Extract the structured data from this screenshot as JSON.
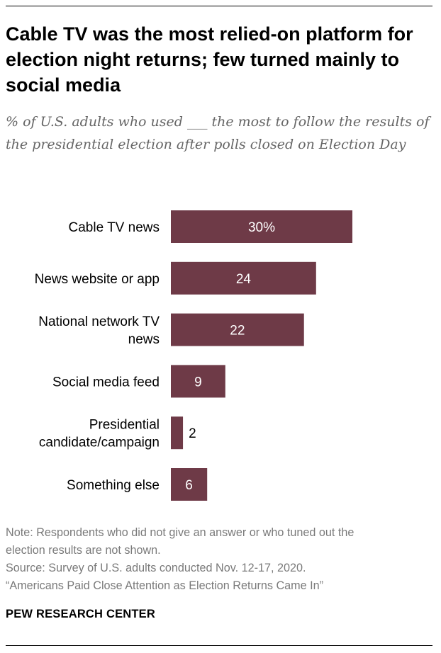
{
  "title": "Cable TV was the most relied-on platform for election night returns; few turned mainly to social media",
  "subtitle": "% of U.S. adults who used ___ the most to follow the results of the presidential election after polls closed on Election Day",
  "note_line1": "Note: Respondents who did not give an answer or who tuned out the",
  "note_line2": "election results are not shown.",
  "source": "Source: Survey of U.S. adults conducted Nov. 12-17, 2020.",
  "report": "“Americans Paid Close Attention as Election Returns Came In”",
  "brand": "PEW RESEARCH CENTER",
  "colors": {
    "bar": "#6e3a47",
    "label_inside": "#ffffff",
    "label_outside": "#000000"
  },
  "chart_data": {
    "type": "bar",
    "orientation": "horizontal",
    "categories": [
      [
        "Cable TV news"
      ],
      [
        "News website or app"
      ],
      [
        "National network TV",
        "news"
      ],
      [
        "Social media feed"
      ],
      [
        "Presidential",
        "candidate/campaign"
      ],
      [
        "Something else"
      ]
    ],
    "values": [
      30,
      24,
      22,
      9,
      2,
      6
    ],
    "value_labels": [
      "30%",
      "24",
      "22",
      "9",
      "2",
      "6"
    ],
    "xlim": [
      0,
      30
    ]
  }
}
